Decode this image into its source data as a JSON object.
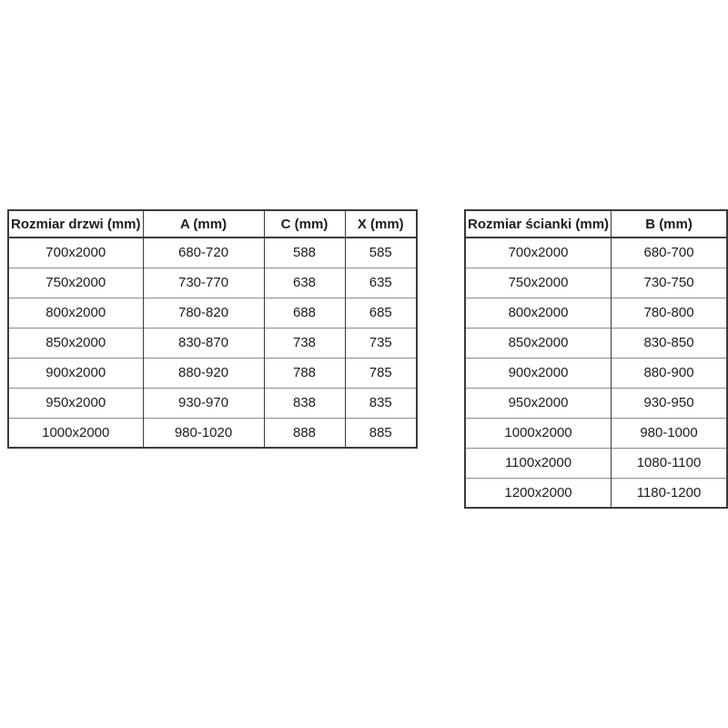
{
  "page": {
    "background": "#ffffff",
    "text_color": "#1d1d1d",
    "border_dark": "#3b3b3b",
    "border_light": "#8c8c8c"
  },
  "tables": [
    {
      "name": "door-size-table",
      "headers": [
        "Rozmiar drzwi (mm)",
        "A (mm)",
        "C (mm)",
        "X (mm)"
      ],
      "rows": [
        [
          "700x2000",
          "680-720",
          "588",
          "585"
        ],
        [
          "750x2000",
          "730-770",
          "638",
          "635"
        ],
        [
          "800x2000",
          "780-820",
          "688",
          "685"
        ],
        [
          "850x2000",
          "830-870",
          "738",
          "735"
        ],
        [
          "900x2000",
          "880-920",
          "788",
          "785"
        ],
        [
          "950x2000",
          "930-970",
          "838",
          "835"
        ],
        [
          "1000x2000",
          "980-1020",
          "888",
          "885"
        ]
      ]
    },
    {
      "name": "wall-size-table",
      "headers": [
        "Rozmiar ścianki (mm)",
        "B (mm)"
      ],
      "rows": [
        [
          "700x2000",
          "680-700"
        ],
        [
          "750x2000",
          "730-750"
        ],
        [
          "800x2000",
          "780-800"
        ],
        [
          "850x2000",
          "830-850"
        ],
        [
          "900x2000",
          "880-900"
        ],
        [
          "950x2000",
          "930-950"
        ],
        [
          "1000x2000",
          "980-1000"
        ],
        [
          "1100x2000",
          "1080-1100"
        ],
        [
          "1200x2000",
          "1180-1200"
        ]
      ]
    }
  ]
}
